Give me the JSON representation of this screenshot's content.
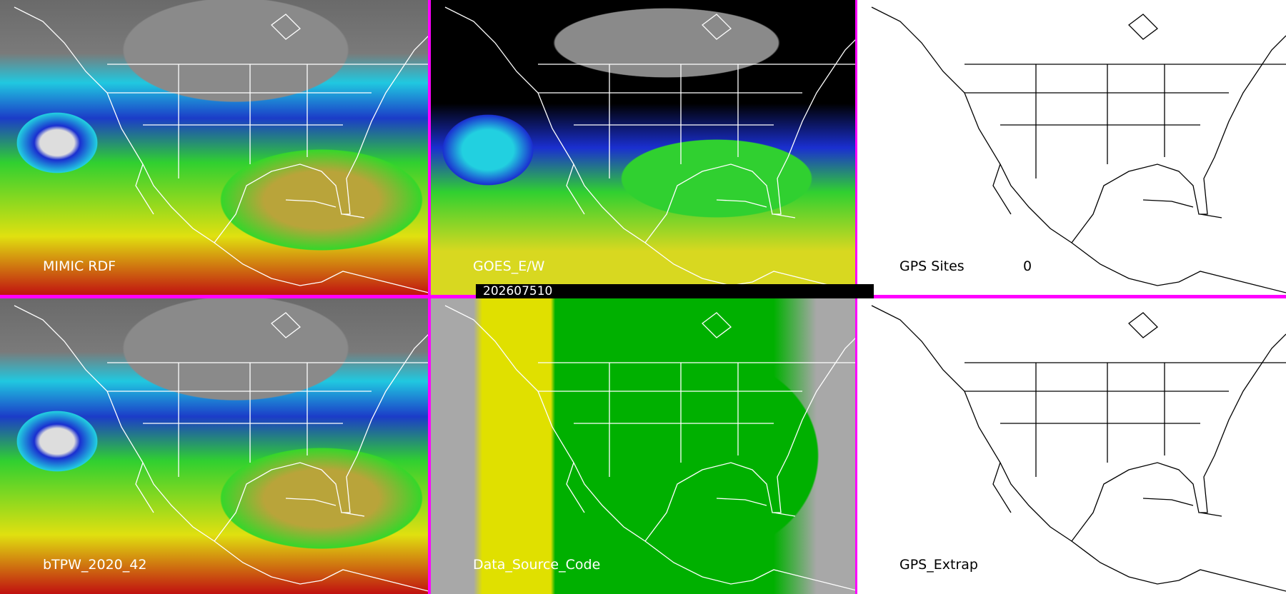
{
  "panels": [
    {
      "id": "mimic",
      "label": "MIMIC RDF"
    },
    {
      "id": "goes",
      "label": "GOES_E/W"
    },
    {
      "id": "gps-sites",
      "label": "GPS Sites",
      "count": "0"
    },
    {
      "id": "btpw",
      "label": "bTPW_2020_42"
    },
    {
      "id": "dsc",
      "label": "Data_Source_Code"
    },
    {
      "id": "gps-extrap",
      "label": "GPS_Extrap"
    }
  ],
  "timestamp": "202607510",
  "colors": {
    "separator": "#ff00ff",
    "map_outline_dark": "#ffffff",
    "map_outline_light": "#000000"
  }
}
